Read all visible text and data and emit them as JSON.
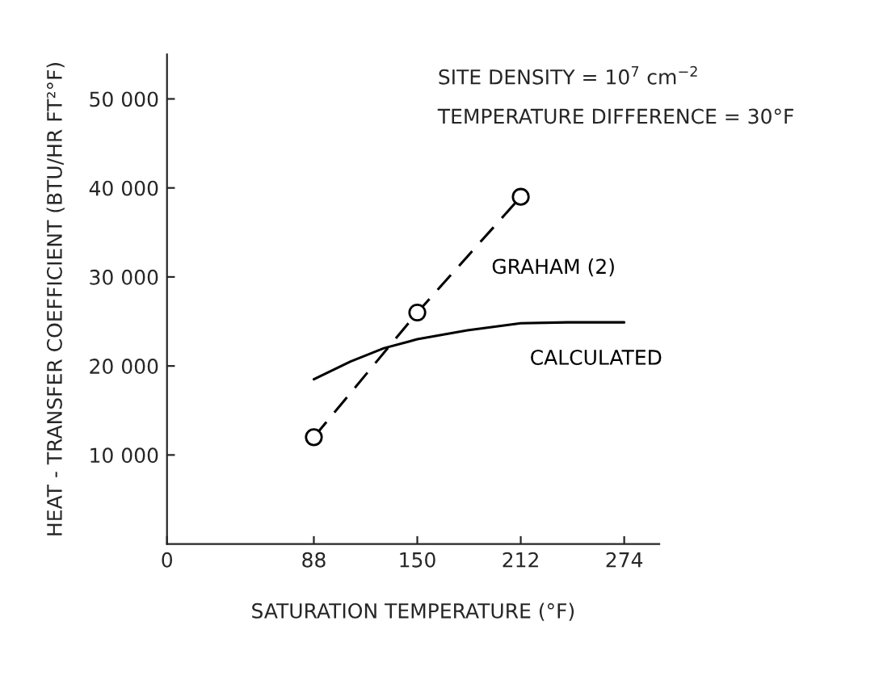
{
  "chart_data": {
    "type": "line",
    "xlabel": "SATURATION TEMPERATURE (°F)",
    "ylabel": "HEAT - TRANSFER COEFFICIENT (BTU/HR FT²°F)",
    "annotations": [
      "SITE DENSITY = 10$^{7}$ cm$^{−2}$",
      "TEMPERATURE DIFFERENCE = 30°F"
    ],
    "series": [
      {
        "name": "GRAHAM (2)",
        "color": "#000000",
        "marker": "circle",
        "line_style": "dashed",
        "x": [
          88,
          150,
          212
        ],
        "values": [
          12000,
          26000,
          39000
        ]
      },
      {
        "name": "CALCULATED",
        "color": "#000000",
        "marker": "none",
        "line_style": "solid",
        "x": [
          88,
          110,
          130,
          150,
          180,
          212,
          240,
          274
        ],
        "values": [
          18500,
          20500,
          22000,
          23000,
          24000,
          24800,
          24900,
          24900
        ]
      }
    ],
    "xlim": [
      0,
      295
    ],
    "xticks": [
      0,
      88,
      150,
      212,
      274
    ],
    "ylim": [
      0,
      55000
    ],
    "yticks": [
      {
        "value": 10000,
        "label": "10 000"
      },
      {
        "value": 20000,
        "label": "20 000"
      },
      {
        "value": 30000,
        "label": "30 000"
      },
      {
        "value": 40000,
        "label": "40 000"
      },
      {
        "value": 50000,
        "label": "50 000"
      }
    ],
    "grid": false,
    "legend": false
  }
}
